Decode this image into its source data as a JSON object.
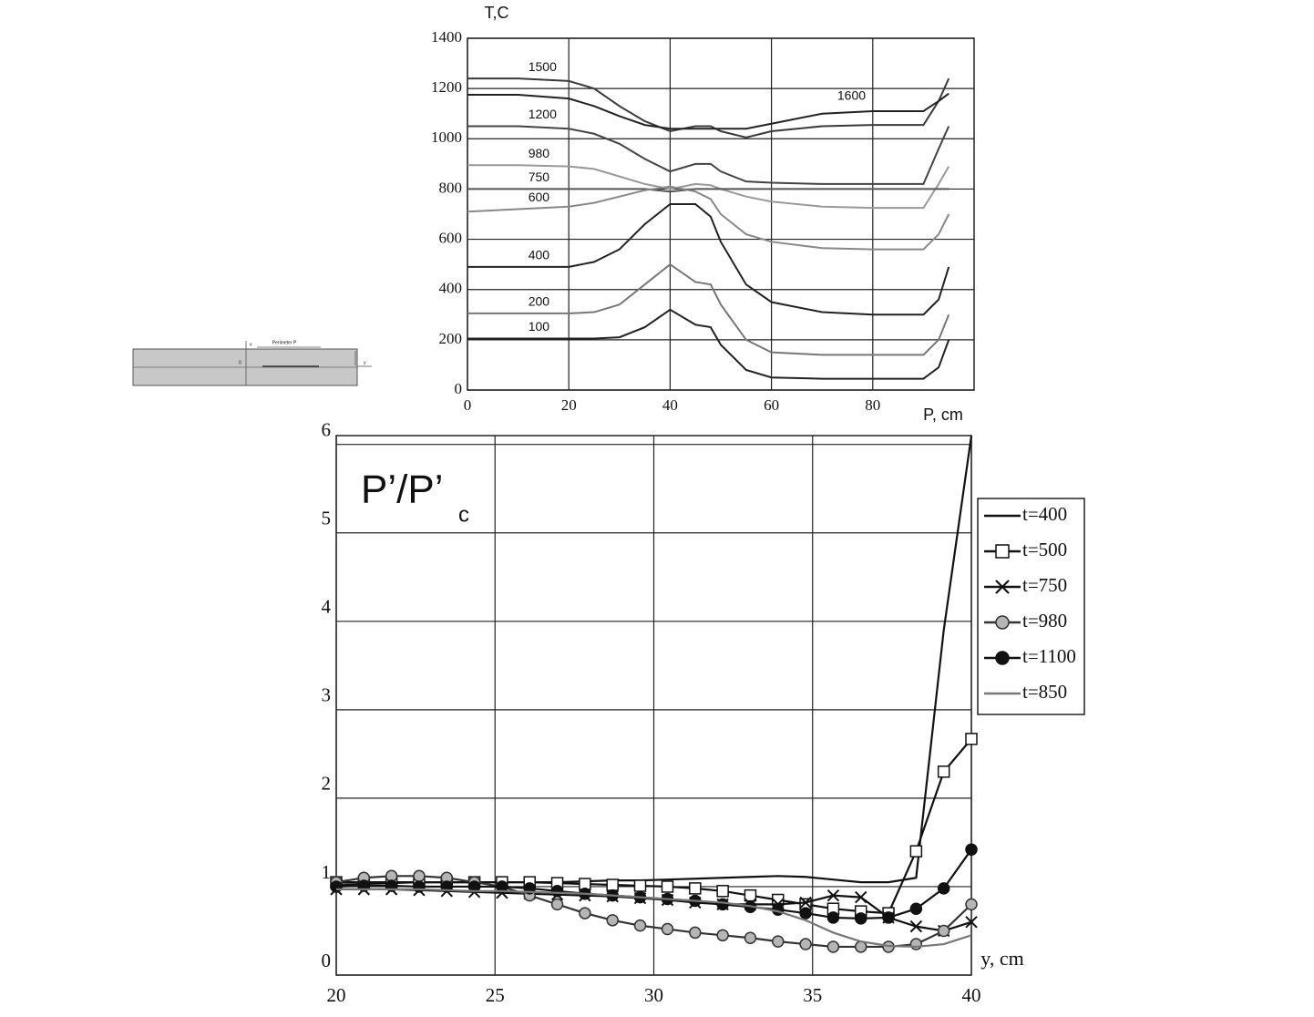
{
  "chart_data": [
    {
      "type": "line",
      "y_label": "T,C",
      "x_label": "P, cm",
      "x": [
        0,
        10,
        20,
        25,
        30,
        35,
        40,
        45,
        48,
        50,
        55,
        60,
        70,
        80,
        90,
        93,
        95
      ],
      "xlim": [
        0,
        100
      ],
      "xticks": [
        0,
        20,
        40,
        60,
        80
      ],
      "ylim": [
        0,
        1400
      ],
      "yticks": [
        0,
        200,
        400,
        600,
        800,
        1000,
        1200,
        1400
      ],
      "grid": true,
      "series": [
        {
          "name": "1500",
          "color": "#3a3a3a",
          "values": [
            1240,
            1240,
            1230,
            1200,
            1130,
            1070,
            1030,
            1050,
            1050,
            1030,
            1005,
            1030,
            1050,
            1055,
            1055,
            1150,
            1240
          ]
        },
        {
          "name": "1600",
          "color": "#222222",
          "values": [
            1175,
            1175,
            1160,
            1130,
            1090,
            1055,
            1040,
            1040,
            1040,
            1040,
            1040,
            1060,
            1100,
            1110,
            1110,
            1150,
            1180
          ]
        },
        {
          "name": "1200",
          "color": "#444444",
          "values": [
            1050,
            1050,
            1040,
            1020,
            980,
            920,
            870,
            900,
            900,
            870,
            830,
            825,
            820,
            820,
            820,
            960,
            1050
          ]
        },
        {
          "name": "980",
          "color": "#999999",
          "values": [
            895,
            895,
            890,
            880,
            850,
            820,
            800,
            820,
            815,
            800,
            770,
            750,
            730,
            725,
            725,
            820,
            890
          ]
        },
        {
          "name": "750",
          "color": "#555555",
          "values": [
            800,
            800,
            800,
            800,
            800,
            800,
            790,
            800,
            800,
            800,
            800,
            800,
            800,
            800,
            800,
            800,
            800
          ]
        },
        {
          "name": "600",
          "color": "#888888",
          "values": [
            710,
            720,
            730,
            745,
            770,
            795,
            810,
            790,
            760,
            700,
            620,
            590,
            565,
            560,
            560,
            620,
            700
          ]
        },
        {
          "name": "400",
          "color": "#222222",
          "values": [
            490,
            490,
            490,
            510,
            560,
            660,
            740,
            740,
            690,
            590,
            420,
            350,
            310,
            300,
            300,
            360,
            490
          ]
        },
        {
          "name": "200",
          "color": "#777777",
          "values": [
            305,
            305,
            305,
            310,
            340,
            420,
            500,
            430,
            420,
            340,
            200,
            150,
            140,
            140,
            140,
            200,
            300
          ]
        },
        {
          "name": "100",
          "color": "#222222",
          "values": [
            205,
            205,
            205,
            205,
            210,
            250,
            320,
            260,
            250,
            180,
            80,
            50,
            45,
            45,
            45,
            90,
            200
          ]
        }
      ]
    },
    {
      "type": "line",
      "title": "P’/P’",
      "title_sub": "c",
      "x_label": "y, cm",
      "x": [
        20,
        20.87,
        21.74,
        22.61,
        23.48,
        24.35,
        25.22,
        26.09,
        26.96,
        27.83,
        28.7,
        29.57,
        30.43,
        31.3,
        32.17,
        33.04,
        33.91,
        34.78,
        35.65,
        36.52,
        37.39,
        38.26,
        39.13,
        40
      ],
      "xlim": [
        20,
        40
      ],
      "xticks": [
        20,
        25,
        30,
        35,
        40
      ],
      "ylim": [
        0,
        6.1
      ],
      "yticks": [
        0,
        1,
        2,
        3,
        4,
        5,
        6
      ],
      "grid": true,
      "legend": "right",
      "series": [
        {
          "name": "t=400",
          "color": "#111111",
          "marker": "none",
          "values": [
            1.02,
            1.03,
            1.04,
            1.05,
            1.05,
            1.05,
            1.05,
            1.05,
            1.05,
            1.06,
            1.07,
            1.07,
            1.08,
            1.09,
            1.1,
            1.11,
            1.12,
            1.11,
            1.08,
            1.05,
            1.05,
            1.1,
            3.9,
            6.1
          ]
        },
        {
          "name": "t=500",
          "color": "#111111",
          "marker": "square",
          "marker_fill": "#ffffff",
          "values": [
            1.05,
            1.05,
            1.05,
            1.05,
            1.05,
            1.05,
            1.05,
            1.05,
            1.04,
            1.03,
            1.02,
            1.01,
            1.0,
            0.98,
            0.95,
            0.9,
            0.85,
            0.8,
            0.75,
            0.72,
            0.7,
            1.4,
            2.3,
            2.67
          ]
        },
        {
          "name": "t=750",
          "color": "#111111",
          "marker": "x",
          "marker_fill": "#111111",
          "values": [
            0.97,
            0.97,
            0.97,
            0.96,
            0.95,
            0.94,
            0.93,
            0.92,
            0.91,
            0.9,
            0.89,
            0.87,
            0.85,
            0.82,
            0.8,
            0.8,
            0.8,
            0.82,
            0.9,
            0.88,
            0.65,
            0.55,
            0.5,
            0.6
          ]
        },
        {
          "name": "t=980",
          "color": "#333333",
          "marker": "circle",
          "marker_fill": "#b5b5b5",
          "values": [
            1.05,
            1.1,
            1.12,
            1.12,
            1.1,
            1.05,
            1.0,
            0.9,
            0.8,
            0.7,
            0.62,
            0.56,
            0.52,
            0.48,
            0.45,
            0.42,
            0.38,
            0.35,
            0.32,
            0.32,
            0.32,
            0.35,
            0.5,
            0.8
          ]
        },
        {
          "name": "t=1100",
          "color": "#111111",
          "marker": "circle",
          "marker_fill": "#111111",
          "values": [
            1.0,
            1.01,
            1.01,
            1.0,
            1.0,
            1.0,
            1.0,
            0.98,
            0.95,
            0.92,
            0.9,
            0.88,
            0.86,
            0.84,
            0.8,
            0.77,
            0.74,
            0.7,
            0.65,
            0.64,
            0.65,
            0.75,
            0.98,
            1.42
          ]
        },
        {
          "name": "t=850",
          "color": "#777777",
          "marker": "none",
          "values": [
            0.97,
            0.97,
            0.97,
            0.97,
            0.96,
            0.95,
            0.95,
            0.94,
            0.93,
            0.92,
            0.9,
            0.88,
            0.86,
            0.84,
            0.82,
            0.78,
            0.72,
            0.62,
            0.48,
            0.38,
            0.33,
            0.32,
            0.35,
            0.45
          ]
        }
      ]
    }
  ],
  "diagram": {
    "label": "Perimeter P",
    "origin": "0",
    "y_axis": "y",
    "x_axis": "x"
  }
}
